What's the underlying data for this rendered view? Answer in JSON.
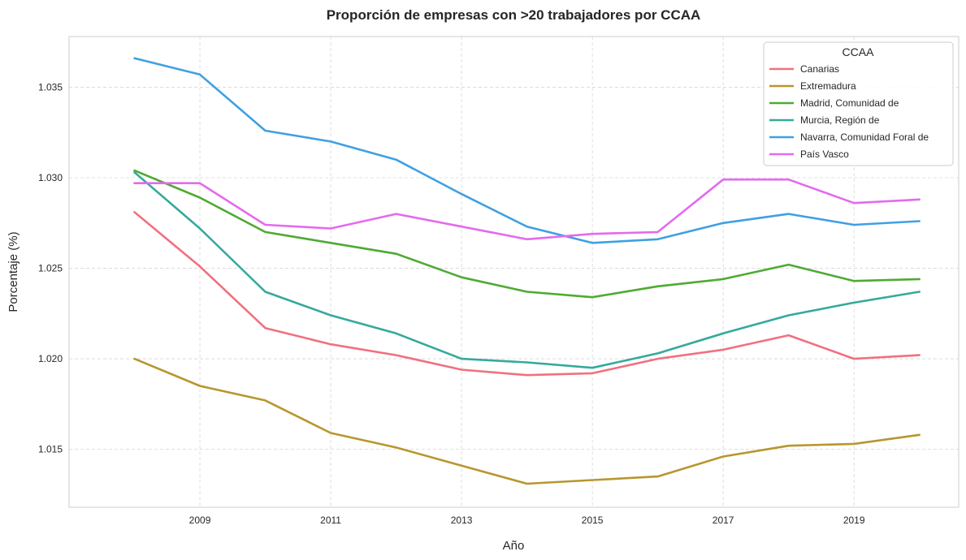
{
  "chart_data": {
    "type": "line",
    "title": "Proporción de empresas con >20 trabajadores por CCAA",
    "xlabel": "Año",
    "ylabel": "Porcentaje (%)",
    "x": [
      2008,
      2009,
      2010,
      2011,
      2012,
      2013,
      2014,
      2015,
      2016,
      2017,
      2018,
      2019,
      2020
    ],
    "xlim": [
      2007.0,
      2020.6
    ],
    "ylim": [
      1.0118,
      1.0378
    ],
    "xticks": [
      2009,
      2011,
      2013,
      2015,
      2017,
      2019
    ],
    "yticks": [
      1.015,
      1.02,
      1.025,
      1.03,
      1.035
    ],
    "xtick_labels": [
      "2009",
      "2011",
      "2013",
      "2015",
      "2017",
      "2019"
    ],
    "ytick_labels": [
      "1.015",
      "1.020",
      "1.025",
      "1.030",
      "1.035"
    ],
    "grid": true,
    "legend": {
      "title": "CCAA",
      "position": "top-right"
    },
    "series": [
      {
        "name": "Canarias",
        "color": "#f0717f",
        "values": [
          1.0281,
          1.0251,
          1.0217,
          1.0208,
          1.0202,
          1.0194,
          1.0191,
          1.0192,
          1.02,
          1.0205,
          1.0213,
          1.02,
          1.0202
        ]
      },
      {
        "name": "Extremadura",
        "color": "#b8962e",
        "values": [
          1.02,
          1.0185,
          1.0177,
          1.0159,
          1.0151,
          1.0141,
          1.0131,
          1.0133,
          1.0135,
          1.0146,
          1.0152,
          1.0153,
          1.0158
        ]
      },
      {
        "name": "Madrid, Comunidad de",
        "color": "#4faa33",
        "values": [
          1.0304,
          1.0289,
          1.027,
          1.0264,
          1.0258,
          1.0245,
          1.0237,
          1.0234,
          1.024,
          1.0244,
          1.0252,
          1.0243,
          1.0244
        ]
      },
      {
        "name": "Murcia, Región de",
        "color": "#35a99b",
        "values": [
          1.0303,
          1.0272,
          1.0237,
          1.0224,
          1.0214,
          1.02,
          1.0198,
          1.0195,
          1.0203,
          1.0214,
          1.0224,
          1.0231,
          1.0237
        ]
      },
      {
        "name": "Navarra, Comunidad Foral de",
        "color": "#3fa0e3",
        "values": [
          1.0366,
          1.0357,
          1.0326,
          1.032,
          1.031,
          1.0291,
          1.0273,
          1.0264,
          1.0266,
          1.0275,
          1.028,
          1.0274,
          1.0276
        ]
      },
      {
        "name": "País Vasco",
        "color": "#e46aee",
        "values": [
          1.0297,
          1.0297,
          1.0274,
          1.0272,
          1.028,
          1.0273,
          1.0266,
          1.0269,
          1.027,
          1.0299,
          1.0299,
          1.0286,
          1.0288
        ]
      }
    ]
  }
}
